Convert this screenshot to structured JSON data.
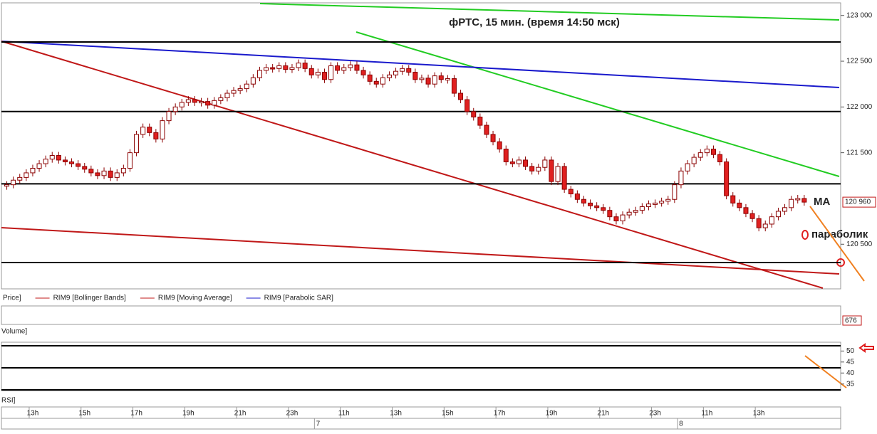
{
  "chart_data": {
    "type": "candlestick",
    "title": "фРТС,  15 мин.  (время  14:50 мск)",
    "closes": [
      121150,
      121200,
      121230,
      121280,
      121330,
      121380,
      121430,
      121470,
      121420,
      121400,
      121380,
      121350,
      121320,
      121280,
      121250,
      121300,
      121230,
      121280,
      121330,
      121500,
      121700,
      121780,
      121720,
      121650,
      121850,
      121950,
      122000,
      122050,
      122080,
      122050,
      122060,
      122020,
      122070,
      122100,
      122150,
      122180,
      122200,
      122250,
      122320,
      122400,
      122430,
      122420,
      122450,
      122410,
      122430,
      122480,
      122420,
      122350,
      122380,
      122300,
      122450,
      122400,
      122430,
      122460,
      122400,
      122350,
      122280,
      122250,
      122320,
      122350,
      122390,
      122420,
      122380,
      122300,
      122315,
      122250,
      122340,
      122300,
      122310,
      122150,
      122080,
      121950,
      121890,
      121800,
      121700,
      121620,
      121540,
      121400,
      121380,
      121420,
      121350,
      121300,
      121340,
      121420,
      121185,
      121350,
      121100,
      121050,
      120990,
      120950,
      120920,
      120900,
      120870,
      120800,
      120755,
      120820,
      120850,
      120870,
      120910,
      120940,
      120950,
      120970,
      120990,
      121150,
      121300,
      121380,
      121450,
      121500,
      121540,
      121480,
      121400,
      121030,
      120950,
      120900,
      120835,
      120780,
      120680,
      120720,
      120800,
      120860,
      120900,
      120990,
      121000,
      120960
    ],
    "up_color": "#ffffff",
    "down_color": "#e02020",
    "edge_color": "#8b0000",
    "ylim": [
      120020,
      123130
    ],
    "yticks": [
      {
        "value": 120500,
        "label": "120 500"
      },
      {
        "value": 121500,
        "label": "121 500"
      },
      {
        "value": 122000,
        "label": "122 000"
      },
      {
        "value": 122500,
        "label": "122 500"
      },
      {
        "value": 123000,
        "label": "123 000"
      }
    ],
    "levels": [
      122710,
      121950,
      121160,
      120300
    ],
    "last_price": {
      "value": 120960,
      "label": "120 960"
    },
    "xticks": [
      {
        "value": 4,
        "label": "13h"
      },
      {
        "value": 12,
        "label": "15h"
      },
      {
        "value": 20,
        "label": "17h"
      },
      {
        "value": 28,
        "label": "19h"
      },
      {
        "value": 36,
        "label": "21h"
      },
      {
        "value": 44,
        "label": "23h"
      },
      {
        "value": 52,
        "label": "11h"
      },
      {
        "value": 60,
        "label": "13h"
      },
      {
        "value": 68,
        "label": "15h"
      },
      {
        "value": 76,
        "label": "17h"
      },
      {
        "value": 84,
        "label": "19h"
      },
      {
        "value": 92,
        "label": "21h"
      },
      {
        "value": 100,
        "label": "23h"
      },
      {
        "value": 108,
        "label": "11h"
      },
      {
        "value": 116,
        "label": "13h"
      }
    ],
    "day_ticks": [
      {
        "value": 48,
        "label": "7"
      },
      {
        "value": 104,
        "label": "8"
      }
    ],
    "legend": [
      "Price]",
      "RIM9 [Bollinger Bands]",
      "RIM9 [Moving Average]",
      "RIM9 [Parabolic SAR]"
    ],
    "volume_title": "Volume]",
    "volume_last": 676,
    "rsi_title": "RSI]",
    "rsi_ylim": [
      32,
      54
    ],
    "rsi_yticks": [
      50,
      45,
      40,
      35
    ],
    "annotations": [
      "MA",
      "параболик"
    ]
  }
}
